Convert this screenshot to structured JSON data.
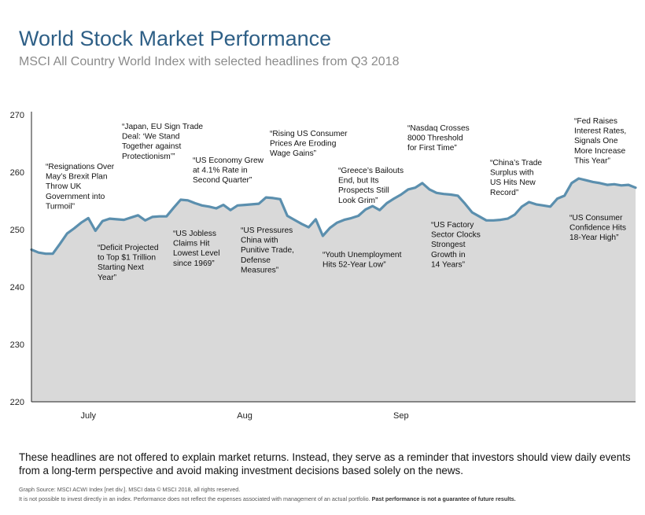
{
  "title": "World Stock Market Performance",
  "subtitle": "MSCI All Country World Index with selected headlines from Q3 2018",
  "chart_data": {
    "type": "area",
    "ylim": [
      220,
      270
    ],
    "yticks": [
      220,
      230,
      240,
      250,
      260,
      270
    ],
    "month_labels": [
      {
        "label": "July",
        "x": 8
      },
      {
        "label": "Aug",
        "x": 30
      },
      {
        "label": "Sep",
        "x": 52
      }
    ],
    "grid": false,
    "colors": {
      "line": "#5b8fae",
      "fill": "#d9d9d9"
    },
    "series": [
      {
        "name": "",
        "values": [
          [
            0,
            246.5
          ],
          [
            1,
            246.0
          ],
          [
            2,
            245.8
          ],
          [
            3,
            245.8
          ],
          [
            4,
            247.5
          ],
          [
            5,
            249.3
          ],
          [
            6,
            250.2
          ],
          [
            7,
            251.2
          ],
          [
            8,
            252.0
          ],
          [
            9,
            249.8
          ],
          [
            10,
            251.5
          ],
          [
            11,
            251.9
          ],
          [
            12,
            251.8
          ],
          [
            13,
            251.7
          ],
          [
            14,
            252.1
          ],
          [
            15,
            252.5
          ],
          [
            16,
            251.6
          ],
          [
            17,
            252.2
          ],
          [
            18,
            252.3
          ],
          [
            19,
            252.3
          ],
          [
            20,
            253.8
          ],
          [
            21,
            255.2
          ],
          [
            22,
            255.1
          ],
          [
            23,
            254.6
          ],
          [
            24,
            254.2
          ],
          [
            25,
            254.0
          ],
          [
            26,
            253.7
          ],
          [
            27,
            254.3
          ],
          [
            28,
            253.4
          ],
          [
            29,
            254.2
          ],
          [
            30,
            254.3
          ],
          [
            31,
            254.4
          ],
          [
            32,
            254.5
          ],
          [
            33,
            255.6
          ],
          [
            34,
            255.5
          ],
          [
            35,
            255.3
          ],
          [
            36,
            252.4
          ],
          [
            37,
            251.7
          ],
          [
            38,
            251.0
          ],
          [
            39,
            250.4
          ],
          [
            40,
            251.8
          ],
          [
            41,
            248.9
          ],
          [
            42,
            250.3
          ],
          [
            43,
            251.2
          ],
          [
            44,
            251.7
          ],
          [
            45,
            252.0
          ],
          [
            46,
            252.4
          ],
          [
            47,
            253.5
          ],
          [
            48,
            254.1
          ],
          [
            49,
            253.4
          ],
          [
            50,
            254.6
          ],
          [
            51,
            255.4
          ],
          [
            52,
            256.1
          ],
          [
            53,
            257.0
          ],
          [
            54,
            257.3
          ],
          [
            55,
            258.1
          ],
          [
            56,
            257.0
          ],
          [
            57,
            256.4
          ],
          [
            58,
            256.2
          ],
          [
            59,
            256.1
          ],
          [
            60,
            255.9
          ],
          [
            61,
            254.5
          ],
          [
            62,
            253.0
          ],
          [
            63,
            252.3
          ],
          [
            64,
            251.6
          ],
          [
            65,
            251.6
          ],
          [
            66,
            251.7
          ],
          [
            67,
            251.9
          ],
          [
            68,
            252.6
          ],
          [
            69,
            254.0
          ],
          [
            70,
            254.8
          ],
          [
            71,
            254.4
          ],
          [
            72,
            254.2
          ],
          [
            73,
            254.0
          ],
          [
            74,
            255.4
          ],
          [
            75,
            255.9
          ],
          [
            76,
            258.1
          ],
          [
            77,
            258.9
          ],
          [
            78,
            258.6
          ],
          [
            79,
            258.3
          ],
          [
            80,
            258.1
          ],
          [
            81,
            257.8
          ],
          [
            82,
            257.9
          ],
          [
            83,
            257.7
          ],
          [
            84,
            257.8
          ],
          [
            85,
            257.3
          ]
        ]
      }
    ],
    "annotations": [
      {
        "lines": [
          "“Resignations Over",
          "May’s Brexit Plan",
          "Throw UK",
          "Government into",
          "Turmoil”"
        ]
      },
      {
        "lines": [
          "“Deficit Projected",
          "to Top $1 Trillion",
          "Starting Next",
          "Year”"
        ]
      },
      {
        "lines": [
          "“Japan, EU Sign Trade",
          "Deal: ‘We Stand",
          "Together against",
          "Protectionism’”"
        ]
      },
      {
        "lines": [
          "“US Jobless",
          "Claims Hit",
          "Lowest Level",
          "since 1969”"
        ]
      },
      {
        "lines": [
          "“US Economy Grew",
          "at 4.1% Rate in",
          "Second Quarter”"
        ]
      },
      {
        "lines": [
          "“US Pressures",
          "China with",
          "Punitive Trade,",
          "Defense",
          "Measures”"
        ]
      },
      {
        "lines": [
          "“Rising US Consumer",
          "Prices Are Eroding",
          "Wage Gains”"
        ]
      },
      {
        "lines": [
          "“Youth Unemployment",
          "Hits 52-Year Low”"
        ]
      },
      {
        "lines": [
          "“Greece’s Bailouts",
          "End, but Its",
          "Prospects Still",
          "Look Grim”"
        ]
      },
      {
        "lines": [
          "“Nasdaq Crosses",
          "8000 Threshold",
          "for First Time”"
        ]
      },
      {
        "lines": [
          "“US Factory",
          "Sector Clocks",
          "Strongest",
          "Growth in",
          "14 Years”"
        ]
      },
      {
        "lines": [
          "“China’s Trade",
          "Surplus with",
          "US Hits New",
          "Record”"
        ]
      },
      {
        "lines": [
          "“Fed Raises",
          "Interest Rates,",
          "Signals One",
          "More Increase",
          "This Year”"
        ]
      },
      {
        "lines": [
          "“US Consumer",
          "Confidence Hits",
          "18-Year High”"
        ]
      }
    ]
  },
  "footnote": "These headlines are not offered to explain market returns. Instead, they serve as a reminder that investors should view daily events from a long-term perspective and avoid making investment decisions based solely on the news.",
  "source": "Graph Source: MSCI ACWI Index [net div.]. MSCI data © MSCI 2018, all rights reserved.",
  "disclaimer": "It is not possible to invest directly in an index. Performance does not reflect the expenses associated with management of an actual portfolio.",
  "disclaimer_bold": "Past performance is not a guarantee of future results."
}
